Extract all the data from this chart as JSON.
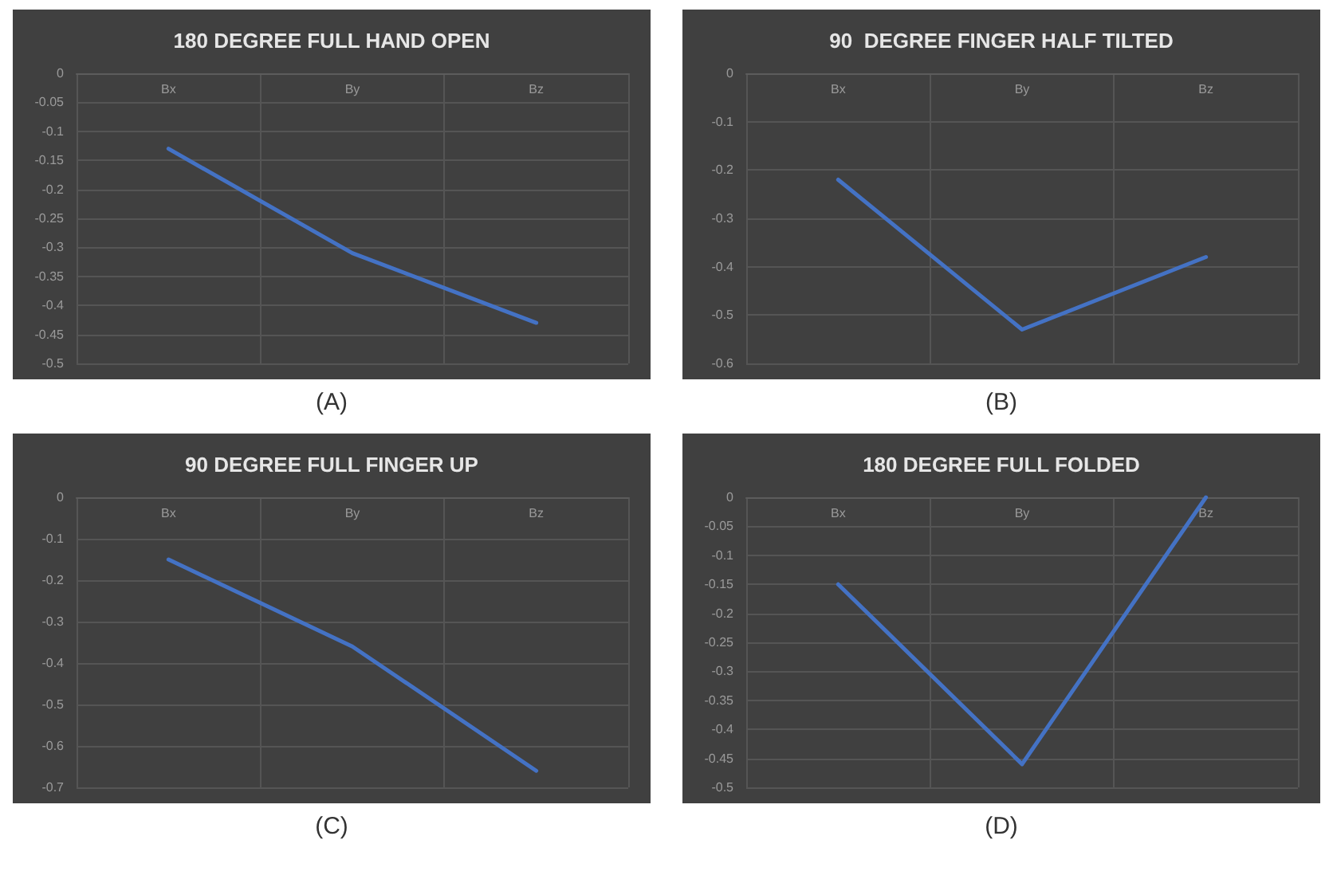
{
  "chart_data": [
    {
      "type": "line",
      "title": "180 DEGREE FULL HAND OPEN",
      "categories": [
        "Bx",
        "By",
        "Bz"
      ],
      "series": [
        {
          "color": "#4472c4",
          "values": [
            -0.13,
            -0.31,
            -0.43
          ]
        }
      ],
      "ylim": [
        -0.5,
        0
      ],
      "yticks": [
        0,
        -0.05,
        -0.1,
        -0.15,
        -0.2,
        -0.25,
        -0.3,
        -0.35,
        -0.4,
        -0.45,
        -0.5
      ],
      "grid": true,
      "marker": "none",
      "annotations": [
        "(A)"
      ]
    },
    {
      "type": "line",
      "title": "90  DEGREE FINGER HALF TILTED",
      "categories": [
        "Bx",
        "By",
        "Bz"
      ],
      "series": [
        {
          "color": "#4472c4",
          "values": [
            -0.22,
            -0.53,
            -0.38
          ]
        }
      ],
      "ylim": [
        -0.6,
        0
      ],
      "yticks": [
        0,
        -0.1,
        -0.2,
        -0.3,
        -0.4,
        -0.5,
        -0.6
      ],
      "grid": true,
      "marker": "none",
      "annotations": [
        "(B)"
      ]
    },
    {
      "type": "line",
      "title": "90 DEGREE FULL FINGER UP",
      "categories": [
        "Bx",
        "By",
        "Bz"
      ],
      "series": [
        {
          "color": "#4472c4",
          "values": [
            -0.15,
            -0.36,
            -0.66
          ]
        }
      ],
      "ylim": [
        -0.7,
        0
      ],
      "yticks": [
        0,
        -0.1,
        -0.2,
        -0.3,
        -0.4,
        -0.5,
        -0.6,
        -0.7
      ],
      "grid": true,
      "marker": "none",
      "annotations": [
        "(C)"
      ]
    },
    {
      "type": "line",
      "title": "180 DEGREE FULL FOLDED",
      "categories": [
        "Bx",
        "By",
        "Bz"
      ],
      "series": [
        {
          "color": "#4472c4",
          "values": [
            -0.15,
            -0.46,
            0
          ]
        }
      ],
      "ylim": [
        -0.5,
        0
      ],
      "yticks": [
        0,
        -0.05,
        -0.1,
        -0.15,
        -0.2,
        -0.25,
        -0.3,
        -0.35,
        -0.4,
        -0.45,
        -0.5
      ],
      "grid": true,
      "marker": "none",
      "annotations": [
        "(D)"
      ]
    }
  ]
}
